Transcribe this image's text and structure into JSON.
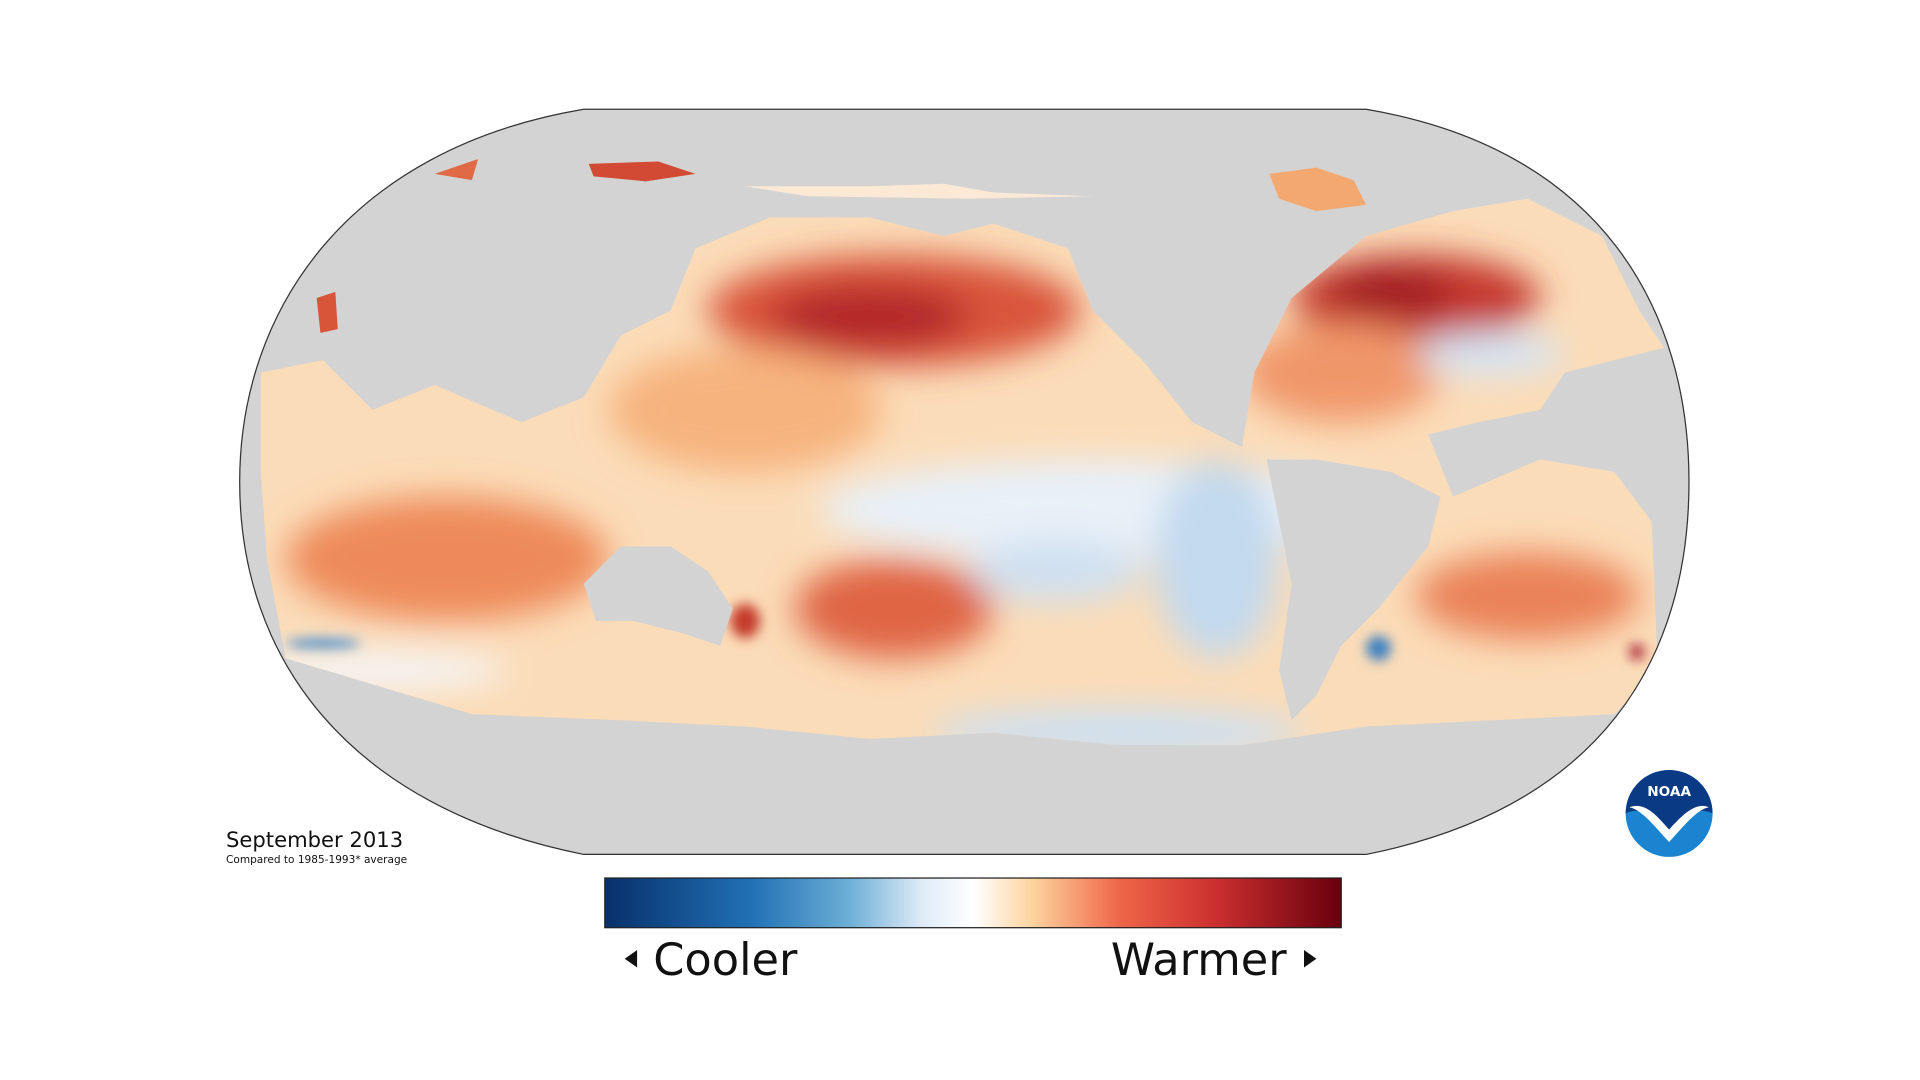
{
  "map": {
    "title": "September 2013",
    "subtitle": "Compared to 1985-1993* average"
  },
  "legend": {
    "low_label": "Cooler",
    "high_label": "Warmer"
  },
  "logo": {
    "text": "NOAA"
  }
}
